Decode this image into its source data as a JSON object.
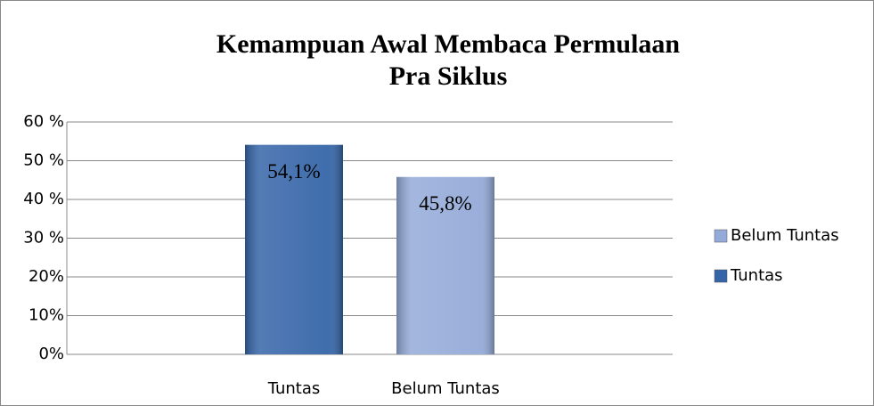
{
  "chart_data": {
    "type": "bar",
    "title": [
      "Kemampuan Awal Membaca Permulaan",
      "Pra Siklus"
    ],
    "categories": [
      "Tuntas",
      "Belum Tuntas"
    ],
    "values": [
      54.1,
      45.8
    ],
    "value_labels": [
      "54,1%",
      "45,8%"
    ],
    "colors": [
      "#3565a8",
      "#94aad8"
    ],
    "ylim": [
      0,
      60
    ],
    "yticks": [
      {
        "value": 0,
        "label": "0%"
      },
      {
        "value": 10,
        "label": "10%"
      },
      {
        "value": 20,
        "label": "20%"
      },
      {
        "value": 30,
        "label": "30 %"
      },
      {
        "value": 40,
        "label": "40 %"
      },
      {
        "value": 50,
        "label": "50 %"
      },
      {
        "value": 60,
        "label": "60 %"
      }
    ],
    "grid": true,
    "legend": "right"
  }
}
